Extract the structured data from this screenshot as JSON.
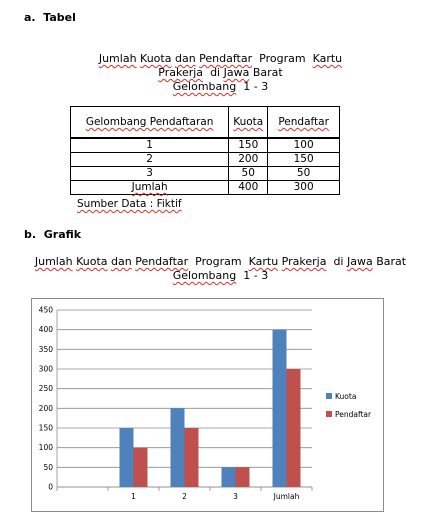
{
  "section_a": {
    "letter": "a.",
    "heading": "Tabel"
  },
  "table_title": {
    "line1": [
      "Jumlah",
      "Kuota",
      "dan",
      "Pendaftar",
      "Program",
      "Kartu"
    ],
    "line2": [
      "Prakerja",
      "di",
      "Jawa",
      "Barat"
    ],
    "line3": [
      "Gelombang",
      "1 - 3"
    ]
  },
  "table": {
    "headers": [
      "Gelombang Pendaftaran",
      "Kuota",
      "Pendaftar"
    ],
    "rows": [
      [
        "1",
        "150",
        "100"
      ],
      [
        "2",
        "200",
        "150"
      ],
      [
        "3",
        "50",
        "50"
      ],
      [
        "Jumlah",
        "400",
        "300"
      ]
    ]
  },
  "source_note": "Sumber Data : Fiktif",
  "section_b": {
    "letter": "b.",
    "heading": "Grafik"
  },
  "chart_title": {
    "line1": [
      "Jumlah",
      "Kuota",
      "dan",
      "Pendaftar",
      "Program",
      "Kartu",
      "Prakerja",
      "di",
      "Jawa",
      "Barat"
    ],
    "line2": [
      "Gelombang",
      "1 - 3"
    ]
  },
  "chart_data": {
    "type": "bar",
    "categories": [
      "",
      "1",
      "2",
      "3",
      "Jumlah"
    ],
    "series": [
      {
        "name": "Kuota",
        "values": [
          null,
          150,
          200,
          50,
          400
        ],
        "color": "#4F81BD"
      },
      {
        "name": "Pendaftar",
        "values": [
          null,
          100,
          150,
          50,
          300
        ],
        "color": "#C0504D"
      }
    ],
    "ylim": [
      0,
      450
    ],
    "yticks": [
      0,
      50,
      100,
      150,
      200,
      250,
      300,
      350,
      400,
      450
    ],
    "grid": true,
    "legend": "right"
  }
}
